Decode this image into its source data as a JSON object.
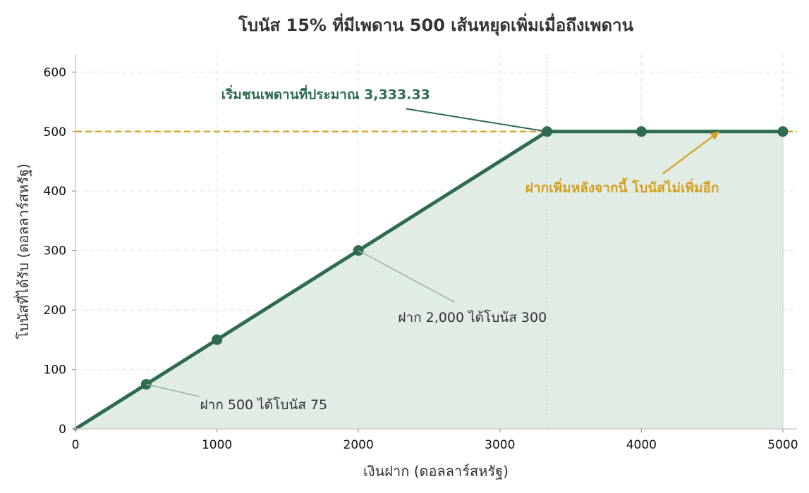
{
  "chart_data": {
    "type": "line",
    "title": "โบนัส 15% ที่มีเพดาน 500 เส้นหยุดเพิ่มเมื่อถึงเพดาน",
    "xlabel": "เงินฝาก (ดอลลาร์สหรัฐ)",
    "ylabel": "โบนัสที่ได้รับ (ดอลลาร์สหรัฐ)",
    "xlim": [
      0,
      5100
    ],
    "ylim": [
      0,
      630
    ],
    "x_ticks": [
      0,
      1000,
      2000,
      3000,
      4000,
      5000
    ],
    "y_ticks": [
      0,
      100,
      200,
      300,
      400,
      500,
      600
    ],
    "grid": true,
    "series": [
      {
        "x": [
          0,
          3333.33,
          5000
        ],
        "y": [
          0,
          500,
          500
        ],
        "color": "#2e6b50",
        "fill": true
      }
    ],
    "markers": [
      {
        "x": 500,
        "y": 75
      },
      {
        "x": 1000,
        "y": 150
      },
      {
        "x": 2000,
        "y": 300
      },
      {
        "x": 3333.33,
        "y": 500
      },
      {
        "x": 4000,
        "y": 500
      },
      {
        "x": 5000,
        "y": 500
      }
    ],
    "cap_line": {
      "y": 500,
      "color": "#d4a020"
    },
    "cap_vertical": {
      "x": 3333.33
    },
    "annotations": [
      {
        "text": "เริ่มชนเพดานที่ประมาณ 3,333.33",
        "point": {
          "x": 3333.33,
          "y": 500
        },
        "text_at": {
          "x": 1030,
          "y": 555
        },
        "style": "green"
      },
      {
        "text": "ฝากเพิ่มหลังจากนี้ โบนัสไม่เพิ่มอีก",
        "point": {
          "x": 4550,
          "y": 500
        },
        "text_at": {
          "x": 3180,
          "y": 398
        },
        "style": "orange"
      },
      {
        "text": "ฝาก 2,000 ได้โบนัส 300",
        "point": {
          "x": 2000,
          "y": 300
        },
        "text_at": {
          "x": 2280,
          "y": 180
        },
        "style": "plain"
      },
      {
        "text": "ฝาก 500 ได้โบนัส 75",
        "point": {
          "x": 500,
          "y": 75
        },
        "text_at": {
          "x": 880,
          "y": 33
        },
        "style": "plain"
      }
    ],
    "colors": {
      "line": "#2e6b50",
      "fill": "#e1ece5",
      "cap": "#d4a020",
      "grid": "#e6e6e6",
      "plain_pointer": "#9bb5a8"
    }
  }
}
